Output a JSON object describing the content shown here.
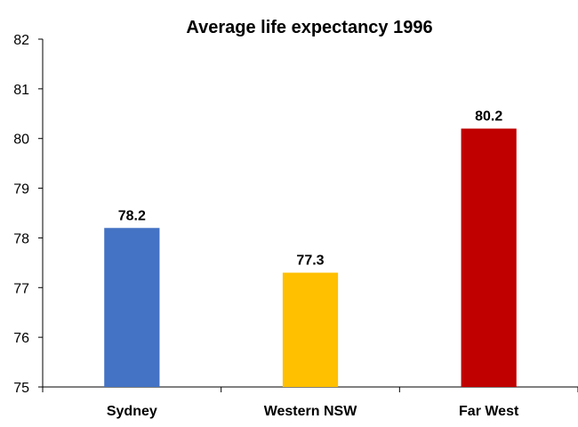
{
  "chart_data": {
    "type": "bar",
    "title": "Average life expectancy 1996",
    "xlabel": "",
    "ylabel": "",
    "categories": [
      "Sydney",
      "Western NSW",
      "Far West"
    ],
    "values": [
      78.2,
      77.3,
      80.2
    ],
    "data_labels": [
      "78.2",
      "77.3",
      "80.2"
    ],
    "bar_colors": [
      "#4472C4",
      "#FFC000",
      "#C00000"
    ],
    "ylim": [
      75,
      82
    ],
    "yticks": [
      75,
      76,
      77,
      78,
      79,
      80,
      81,
      82
    ],
    "ytick_labels": [
      "75",
      "76",
      "77",
      "78",
      "79",
      "80",
      "81",
      "82"
    ],
    "grid": false,
    "legend": "none"
  }
}
